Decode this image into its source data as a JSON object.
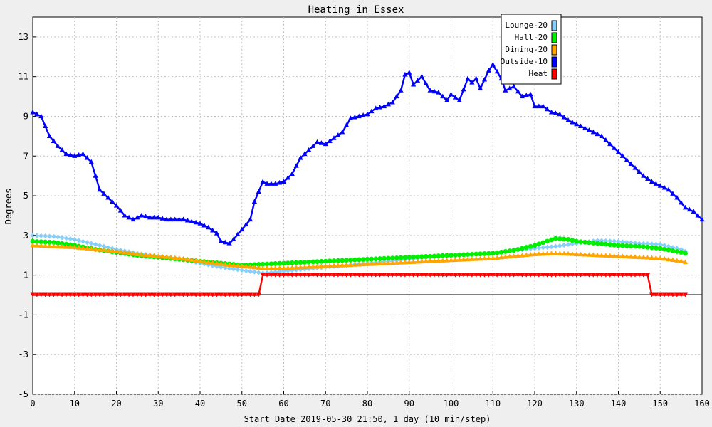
{
  "chart_data": {
    "type": "line",
    "title": "Heating in Essex",
    "xlabel": "Start Date 2019-05-30 21:50, 1 day (10 min/step)",
    "ylabel": "Degrees",
    "xlim": [
      0,
      160
    ],
    "ylim": [
      -5,
      14
    ],
    "xticks": [
      0,
      10,
      20,
      30,
      40,
      50,
      60,
      70,
      80,
      90,
      100,
      110,
      120,
      130,
      140,
      150,
      160
    ],
    "yticks": [
      -5,
      -3,
      -1,
      1,
      3,
      5,
      7,
      9,
      11,
      13
    ],
    "grid": true,
    "legend_position": "top-right",
    "series": [
      {
        "name": "Lounge-20",
        "color": "#87cefa",
        "marker": "diamond",
        "points": [
          [
            0,
            3.0
          ],
          [
            5,
            2.95
          ],
          [
            10,
            2.8
          ],
          [
            15,
            2.55
          ],
          [
            20,
            2.3
          ],
          [
            25,
            2.1
          ],
          [
            30,
            1.95
          ],
          [
            35,
            1.8
          ],
          [
            40,
            1.6
          ],
          [
            45,
            1.4
          ],
          [
            50,
            1.25
          ],
          [
            55,
            1.1
          ],
          [
            60,
            1.2
          ],
          [
            65,
            1.3
          ],
          [
            70,
            1.4
          ],
          [
            75,
            1.5
          ],
          [
            80,
            1.6
          ],
          [
            85,
            1.7
          ],
          [
            90,
            1.8
          ],
          [
            95,
            1.9
          ],
          [
            100,
            2.0
          ],
          [
            105,
            2.05
          ],
          [
            110,
            2.1
          ],
          [
            115,
            2.25
          ],
          [
            120,
            2.35
          ],
          [
            125,
            2.45
          ],
          [
            130,
            2.6
          ],
          [
            135,
            2.75
          ],
          [
            140,
            2.7
          ],
          [
            145,
            2.6
          ],
          [
            150,
            2.55
          ],
          [
            155,
            2.3
          ],
          [
            156,
            2.2
          ]
        ]
      },
      {
        "name": "Hall-20",
        "color": "#00ee00",
        "marker": "circle",
        "points": [
          [
            0,
            2.7
          ],
          [
            5,
            2.65
          ],
          [
            10,
            2.5
          ],
          [
            15,
            2.3
          ],
          [
            20,
            2.15
          ],
          [
            25,
            2.0
          ],
          [
            30,
            1.9
          ],
          [
            35,
            1.8
          ],
          [
            40,
            1.7
          ],
          [
            45,
            1.6
          ],
          [
            50,
            1.5
          ],
          [
            55,
            1.55
          ],
          [
            60,
            1.6
          ],
          [
            65,
            1.65
          ],
          [
            70,
            1.7
          ],
          [
            75,
            1.75
          ],
          [
            80,
            1.8
          ],
          [
            85,
            1.85
          ],
          [
            90,
            1.9
          ],
          [
            95,
            1.95
          ],
          [
            100,
            2.0
          ],
          [
            105,
            2.05
          ],
          [
            110,
            2.1
          ],
          [
            115,
            2.25
          ],
          [
            120,
            2.5
          ],
          [
            125,
            2.85
          ],
          [
            128,
            2.8
          ],
          [
            130,
            2.7
          ],
          [
            135,
            2.6
          ],
          [
            140,
            2.5
          ],
          [
            145,
            2.45
          ],
          [
            150,
            2.35
          ],
          [
            155,
            2.15
          ],
          [
            156,
            2.1
          ]
        ]
      },
      {
        "name": "Dining-20",
        "color": "#ffa500",
        "marker": "triangle",
        "points": [
          [
            0,
            2.5
          ],
          [
            5,
            2.45
          ],
          [
            10,
            2.4
          ],
          [
            15,
            2.3
          ],
          [
            20,
            2.2
          ],
          [
            25,
            2.05
          ],
          [
            30,
            1.95
          ],
          [
            35,
            1.85
          ],
          [
            40,
            1.7
          ],
          [
            45,
            1.55
          ],
          [
            50,
            1.45
          ],
          [
            55,
            1.35
          ],
          [
            60,
            1.35
          ],
          [
            65,
            1.4
          ],
          [
            70,
            1.45
          ],
          [
            75,
            1.5
          ],
          [
            80,
            1.55
          ],
          [
            85,
            1.6
          ],
          [
            90,
            1.65
          ],
          [
            95,
            1.7
          ],
          [
            100,
            1.75
          ],
          [
            105,
            1.8
          ],
          [
            110,
            1.85
          ],
          [
            115,
            1.95
          ],
          [
            120,
            2.05
          ],
          [
            125,
            2.1
          ],
          [
            130,
            2.05
          ],
          [
            135,
            2.0
          ],
          [
            140,
            1.95
          ],
          [
            145,
            1.9
          ],
          [
            150,
            1.85
          ],
          [
            155,
            1.7
          ],
          [
            156,
            1.65
          ]
        ]
      },
      {
        "name": "Outside-10",
        "color": "#0000ff",
        "marker": "triangle",
        "points": [
          [
            0,
            9.2
          ],
          [
            2,
            9.0
          ],
          [
            3,
            8.5
          ],
          [
            4,
            8.0
          ],
          [
            6,
            7.5
          ],
          [
            8,
            7.1
          ],
          [
            10,
            7.0
          ],
          [
            12,
            7.1
          ],
          [
            14,
            6.7
          ],
          [
            15,
            6.0
          ],
          [
            16,
            5.3
          ],
          [
            18,
            4.9
          ],
          [
            20,
            4.5
          ],
          [
            22,
            4.0
          ],
          [
            24,
            3.8
          ],
          [
            26,
            4.0
          ],
          [
            28,
            3.9
          ],
          [
            30,
            3.9
          ],
          [
            32,
            3.8
          ],
          [
            34,
            3.8
          ],
          [
            36,
            3.8
          ],
          [
            38,
            3.7
          ],
          [
            40,
            3.6
          ],
          [
            42,
            3.4
          ],
          [
            44,
            3.1
          ],
          [
            45,
            2.7
          ],
          [
            47,
            2.6
          ],
          [
            48,
            2.8
          ],
          [
            50,
            3.3
          ],
          [
            52,
            3.8
          ],
          [
            53,
            4.7
          ],
          [
            55,
            5.7
          ],
          [
            56,
            5.6
          ],
          [
            58,
            5.6
          ],
          [
            60,
            5.7
          ],
          [
            62,
            6.1
          ],
          [
            64,
            6.9
          ],
          [
            66,
            7.3
          ],
          [
            68,
            7.7
          ],
          [
            70,
            7.6
          ],
          [
            72,
            7.9
          ],
          [
            74,
            8.2
          ],
          [
            76,
            8.9
          ],
          [
            78,
            9.0
          ],
          [
            80,
            9.1
          ],
          [
            82,
            9.4
          ],
          [
            84,
            9.5
          ],
          [
            86,
            9.7
          ],
          [
            88,
            10.3
          ],
          [
            89,
            11.1
          ],
          [
            90,
            11.2
          ],
          [
            91,
            10.6
          ],
          [
            93,
            11.0
          ],
          [
            95,
            10.3
          ],
          [
            97,
            10.2
          ],
          [
            99,
            9.8
          ],
          [
            100,
            10.1
          ],
          [
            102,
            9.8
          ],
          [
            104,
            10.9
          ],
          [
            105,
            10.7
          ],
          [
            106,
            10.9
          ],
          [
            107,
            10.4
          ],
          [
            109,
            11.3
          ],
          [
            110,
            11.6
          ],
          [
            112,
            10.9
          ],
          [
            113,
            10.3
          ],
          [
            115,
            10.5
          ],
          [
            117,
            10.0
          ],
          [
            119,
            10.1
          ],
          [
            120,
            9.5
          ],
          [
            122,
            9.5
          ],
          [
            124,
            9.2
          ],
          [
            126,
            9.1
          ],
          [
            128,
            8.8
          ],
          [
            130,
            8.6
          ],
          [
            132,
            8.4
          ],
          [
            134,
            8.2
          ],
          [
            136,
            8.0
          ],
          [
            138,
            7.6
          ],
          [
            140,
            7.2
          ],
          [
            142,
            6.8
          ],
          [
            144,
            6.4
          ],
          [
            146,
            6.0
          ],
          [
            148,
            5.7
          ],
          [
            150,
            5.5
          ],
          [
            152,
            5.3
          ],
          [
            154,
            4.9
          ],
          [
            156,
            4.4
          ],
          [
            158,
            4.2
          ],
          [
            160,
            3.8
          ]
        ]
      },
      {
        "name": "Heat",
        "color": "#ff0000",
        "marker": "triangle-down",
        "points": [
          [
            0,
            0
          ],
          [
            54,
            0
          ],
          [
            55,
            1
          ],
          [
            147,
            1
          ],
          [
            148,
            0
          ],
          [
            156,
            0
          ]
        ]
      }
    ]
  }
}
